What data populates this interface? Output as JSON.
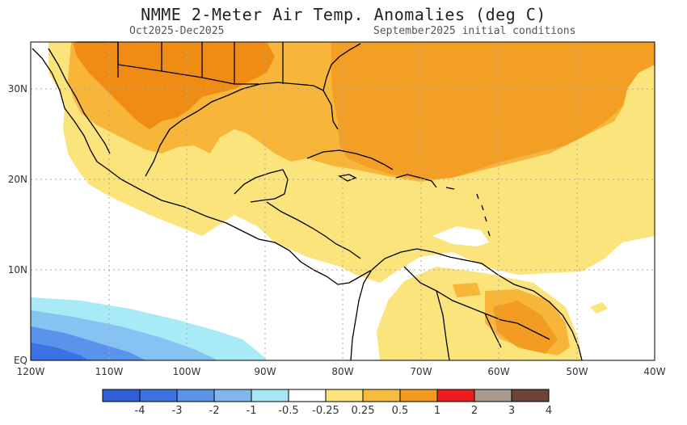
{
  "title": "NMME 2-Meter Air Temp. Anomalies (deg C)",
  "period": "Oct2025-Dec2025",
  "init": "September2025 initial conditions",
  "map": {
    "lon_ticks": [
      "120W",
      "110W",
      "100W",
      "90W",
      "80W",
      "70W",
      "60W",
      "50W",
      "40W"
    ],
    "lat_ticks": [
      "30N",
      "20N",
      "10N",
      "EQ"
    ]
  },
  "colorbar": {
    "labels": [
      "-4",
      "-3",
      "-2",
      "-1",
      "-0.5",
      "-0.25",
      "0.25",
      "0.5",
      "1",
      "2",
      "3",
      "4"
    ],
    "colors": [
      "#2f5fd6",
      "#3b73e4",
      "#5a93ea",
      "#82b6f0",
      "#a7e6f6",
      "#ffffff",
      "#fbe27a",
      "#f9bb3e",
      "#f59a1c",
      "#ee1c1c",
      "#a99a90",
      "#6e4438"
    ]
  },
  "legend_colors": {
    "light_yellow": "#fbe47c",
    "light_orange": "#f7b53a",
    "orange": "#f08c14",
    "cyan": "#a8eaf6",
    "light_blue": "#86c2f2",
    "blue": "#5a93ea"
  }
}
